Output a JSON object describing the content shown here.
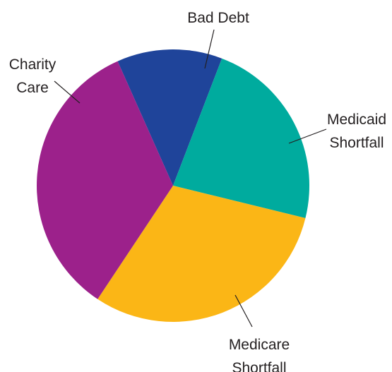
{
  "chart_data": {
    "type": "pie",
    "title": "",
    "slices": [
      {
        "label": "Bad Debt",
        "label_lines": [
          "Bad Debt"
        ],
        "value": 12.5,
        "color": "#1f449a"
      },
      {
        "label": "Medicaid Shortfall",
        "label_lines": [
          "Medicaid",
          "Shortfall"
        ],
        "value": 23.0,
        "color": "#00ab9e"
      },
      {
        "label": "Medicare Shortfall",
        "label_lines": [
          "Medicare",
          "Shortfall"
        ],
        "value": 30.5,
        "color": "#fbb616"
      },
      {
        "label": "Charity Care",
        "label_lines": [
          "Charity",
          "Care"
        ],
        "value": 34.0,
        "color": "#9c218b"
      }
    ],
    "start_angle_deg": -114,
    "direction": "clockwise",
    "labels_outside_with_leader_lines": true
  }
}
